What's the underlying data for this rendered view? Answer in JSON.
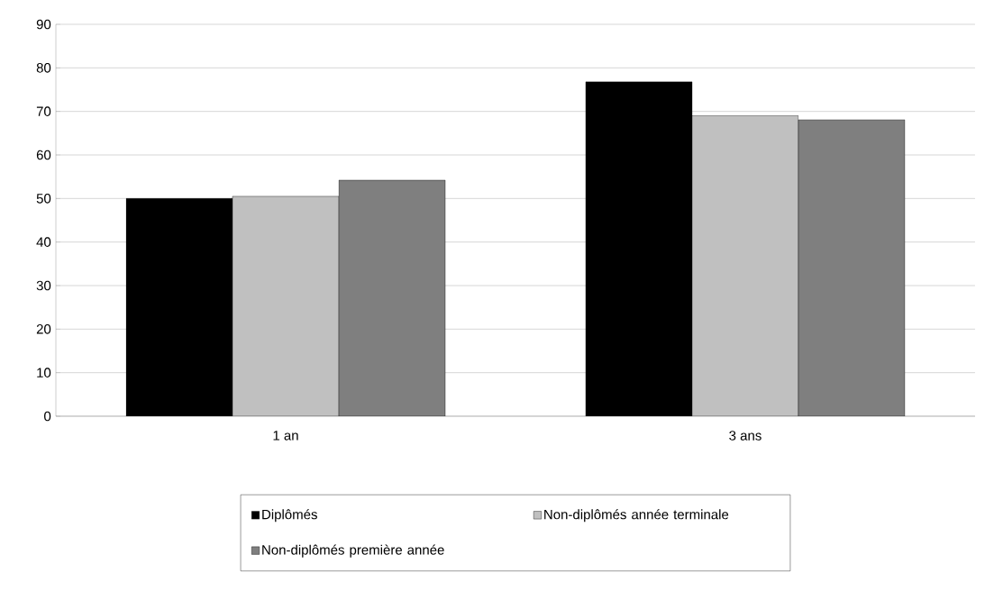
{
  "chart_data": {
    "type": "bar",
    "categories": [
      "1 an",
      "3 ans"
    ],
    "series": [
      {
        "name": "Diplômés",
        "color": "#000000",
        "values": [
          50,
          76.8
        ]
      },
      {
        "name": "Non-diplômés année terminale",
        "color": "#c0c0c0",
        "values": [
          50.5,
          69
        ]
      },
      {
        "name": "Non-diplômés première année",
        "color": "#7f7f7f",
        "values": [
          54.2,
          68.1
        ]
      }
    ],
    "ylim": [
      0,
      90
    ],
    "yticks": [
      0,
      10,
      20,
      30,
      40,
      50,
      60,
      70,
      80,
      90
    ],
    "grid": "y",
    "legend": "bottom"
  }
}
